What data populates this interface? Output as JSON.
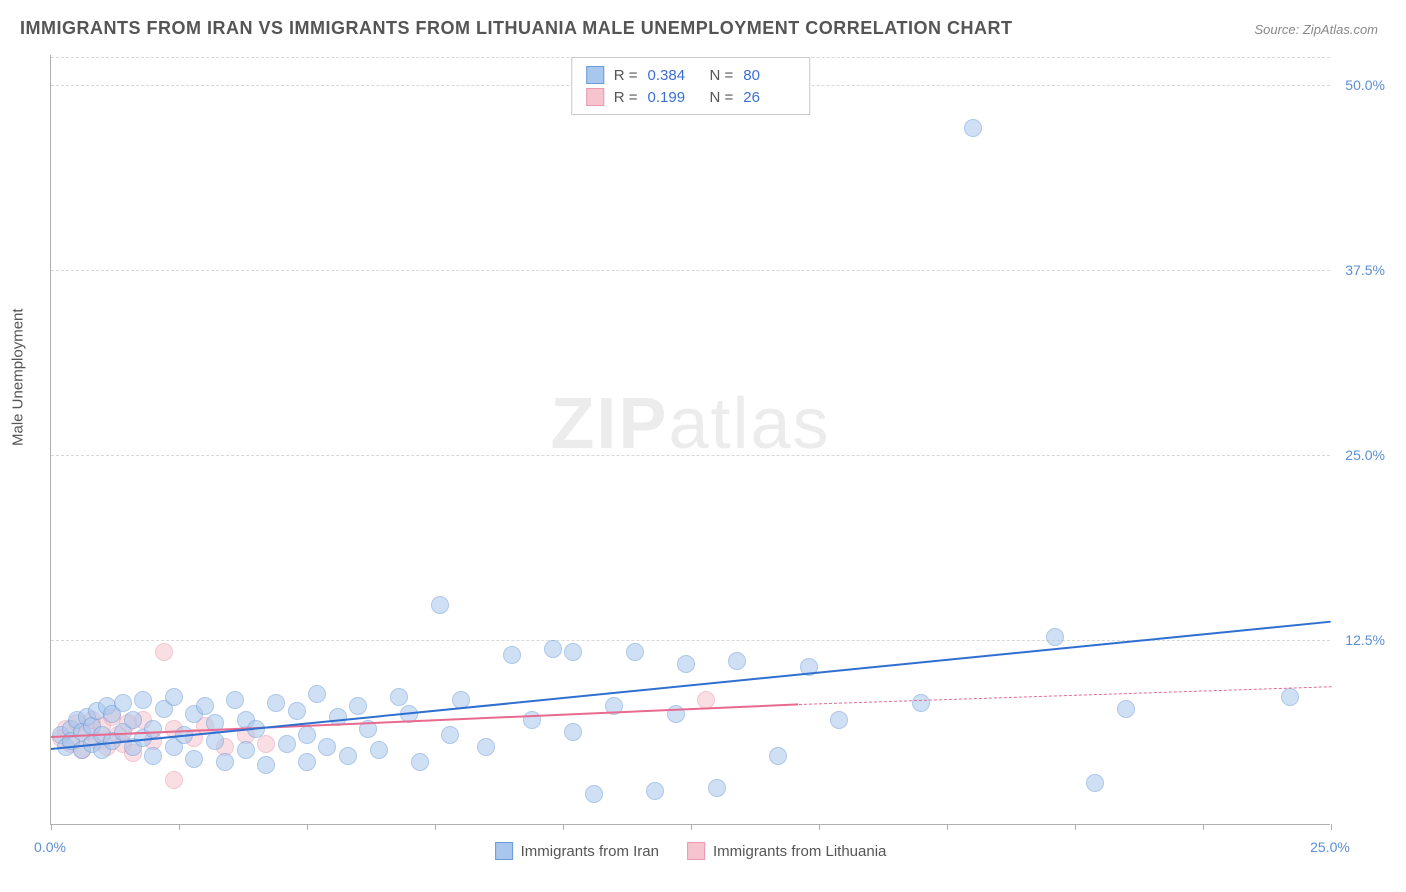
{
  "title": "IMMIGRANTS FROM IRAN VS IMMIGRANTS FROM LITHUANIA MALE UNEMPLOYMENT CORRELATION CHART",
  "source": "Source: ZipAtlas.com",
  "y_axis_label": "Male Unemployment",
  "watermark": {
    "bold": "ZIP",
    "rest": "atlas"
  },
  "chart": {
    "type": "scatter",
    "background_color": "#ffffff",
    "grid_color": "#d8d8d8",
    "axis_color": "#b0b0b0",
    "tick_label_color": "#5a8fd6",
    "tick_label_fontsize": 14,
    "title_fontsize": 18,
    "title_color": "#555555",
    "xlim": [
      0,
      25
    ],
    "ylim": [
      0,
      52
    ],
    "xticks": [
      0,
      2.5,
      5,
      7.5,
      10,
      12.5,
      15,
      17.5,
      20,
      22.5,
      25
    ],
    "xtick_labels": {
      "0": "0.0%",
      "25": "25.0%"
    },
    "yticks": [
      12.5,
      25.0,
      37.5,
      50.0
    ],
    "ytick_labels": [
      "12.5%",
      "25.0%",
      "37.5%",
      "50.0%"
    ],
    "marker_radius": 9,
    "marker_opacity": 0.55,
    "series": {
      "iran": {
        "label": "Immigrants from Iran",
        "color_fill": "#a9c7ec",
        "color_stroke": "#6b9bd8",
        "r": 0.384,
        "n": 80,
        "trend": {
          "x0": 0,
          "y0": 5.2,
          "x1": 25,
          "y1": 13.8,
          "color": "#2f6fd0",
          "width": 2.5,
          "dash": false
        },
        "points": [
          [
            0.2,
            6.0
          ],
          [
            0.3,
            5.2
          ],
          [
            0.4,
            6.4
          ],
          [
            0.4,
            5.6
          ],
          [
            0.5,
            7.0
          ],
          [
            0.6,
            5.0
          ],
          [
            0.6,
            6.2
          ],
          [
            0.7,
            7.2
          ],
          [
            0.8,
            5.4
          ],
          [
            0.8,
            6.6
          ],
          [
            0.9,
            7.6
          ],
          [
            1.0,
            5.0
          ],
          [
            1.0,
            6.0
          ],
          [
            1.1,
            8.0
          ],
          [
            1.2,
            5.6
          ],
          [
            1.2,
            7.4
          ],
          [
            1.4,
            6.2
          ],
          [
            1.4,
            8.2
          ],
          [
            1.6,
            5.2
          ],
          [
            1.6,
            7.0
          ],
          [
            1.8,
            8.4
          ],
          [
            1.8,
            5.8
          ],
          [
            2.0,
            6.4
          ],
          [
            2.0,
            4.6
          ],
          [
            2.2,
            7.8
          ],
          [
            2.4,
            8.6
          ],
          [
            2.4,
            5.2
          ],
          [
            2.6,
            6.0
          ],
          [
            2.8,
            7.4
          ],
          [
            2.8,
            4.4
          ],
          [
            3.0,
            8.0
          ],
          [
            3.2,
            5.6
          ],
          [
            3.2,
            6.8
          ],
          [
            3.4,
            4.2
          ],
          [
            3.6,
            8.4
          ],
          [
            3.8,
            7.0
          ],
          [
            3.8,
            5.0
          ],
          [
            4.0,
            6.4
          ],
          [
            4.2,
            4.0
          ],
          [
            4.4,
            8.2
          ],
          [
            4.6,
            5.4
          ],
          [
            4.8,
            7.6
          ],
          [
            5.0,
            6.0
          ],
          [
            5.0,
            4.2
          ],
          [
            5.2,
            8.8
          ],
          [
            5.4,
            5.2
          ],
          [
            5.6,
            7.2
          ],
          [
            5.8,
            4.6
          ],
          [
            6.0,
            8.0
          ],
          [
            6.2,
            6.4
          ],
          [
            6.4,
            5.0
          ],
          [
            6.8,
            8.6
          ],
          [
            7.0,
            7.4
          ],
          [
            7.2,
            4.2
          ],
          [
            7.6,
            14.8
          ],
          [
            7.8,
            6.0
          ],
          [
            8.0,
            8.4
          ],
          [
            8.5,
            5.2
          ],
          [
            9.0,
            11.4
          ],
          [
            9.4,
            7.0
          ],
          [
            9.8,
            11.8
          ],
          [
            10.2,
            6.2
          ],
          [
            10.2,
            11.6
          ],
          [
            10.6,
            2.0
          ],
          [
            11.0,
            8.0
          ],
          [
            11.4,
            11.6
          ],
          [
            11.8,
            2.2
          ],
          [
            12.2,
            7.4
          ],
          [
            12.4,
            10.8
          ],
          [
            13.0,
            2.4
          ],
          [
            13.4,
            11.0
          ],
          [
            14.2,
            4.6
          ],
          [
            14.8,
            10.6
          ],
          [
            15.4,
            7.0
          ],
          [
            17.0,
            8.2
          ],
          [
            18.0,
            47.0
          ],
          [
            19.6,
            12.6
          ],
          [
            20.4,
            2.8
          ],
          [
            21.0,
            7.8
          ],
          [
            24.2,
            8.6
          ]
        ]
      },
      "lithuania": {
        "label": "Immigrants from Lithuania",
        "color_fill": "#f5c4cf",
        "color_stroke": "#e99ab0",
        "r": 0.199,
        "n": 26,
        "trend_solid": {
          "x0": 0,
          "y0": 6.0,
          "x1": 14.6,
          "y1": 8.2,
          "color": "#e86a8f",
          "width": 2,
          "dash": false
        },
        "trend_dash": {
          "x0": 14.6,
          "y0": 8.2,
          "x1": 25,
          "y1": 9.4,
          "color": "#e86a8f",
          "width": 1,
          "dash": true
        },
        "points": [
          [
            0.2,
            5.8
          ],
          [
            0.3,
            6.4
          ],
          [
            0.4,
            5.4
          ],
          [
            0.5,
            6.8
          ],
          [
            0.6,
            5.0
          ],
          [
            0.7,
            6.2
          ],
          [
            0.8,
            7.0
          ],
          [
            0.9,
            5.6
          ],
          [
            1.0,
            6.6
          ],
          [
            1.1,
            5.2
          ],
          [
            1.2,
            7.2
          ],
          [
            1.3,
            6.0
          ],
          [
            1.4,
            5.4
          ],
          [
            1.5,
            6.8
          ],
          [
            1.6,
            4.8
          ],
          [
            1.8,
            7.0
          ],
          [
            2.0,
            5.6
          ],
          [
            2.2,
            11.6
          ],
          [
            2.4,
            6.4
          ],
          [
            2.4,
            3.0
          ],
          [
            2.8,
            5.8
          ],
          [
            3.0,
            6.6
          ],
          [
            3.4,
            5.2
          ],
          [
            3.8,
            6.0
          ],
          [
            4.2,
            5.4
          ],
          [
            12.8,
            8.4
          ]
        ]
      }
    }
  },
  "legend_top": {
    "r_label": "R =",
    "n_label": "N =",
    "rows": [
      {
        "swatch_fill": "#a9c7ec",
        "swatch_stroke": "#6b9bd8",
        "r": "0.384",
        "n": "80"
      },
      {
        "swatch_fill": "#f5c4cf",
        "swatch_stroke": "#e99ab0",
        "r": "0.199",
        "n": "26"
      }
    ]
  },
  "legend_bottom": [
    {
      "swatch_fill": "#a9c7ec",
      "swatch_stroke": "#6b9bd8",
      "label": "Immigrants from Iran"
    },
    {
      "swatch_fill": "#f5c4cf",
      "swatch_stroke": "#e99ab0",
      "label": "Immigrants from Lithuania"
    }
  ]
}
